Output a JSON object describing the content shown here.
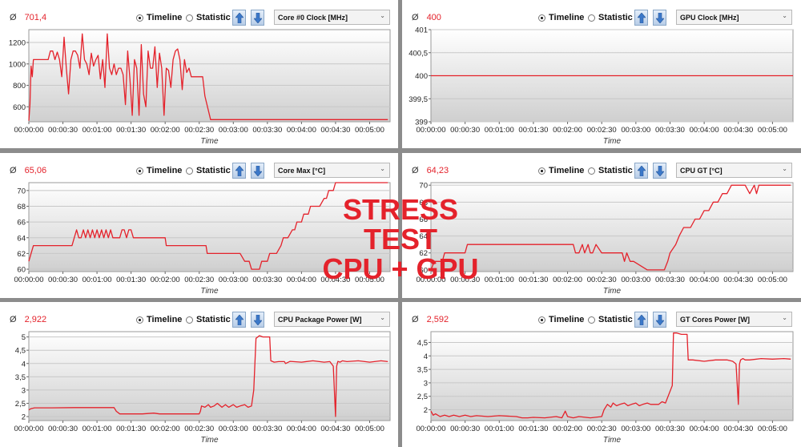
{
  "overlay": {
    "line1": "STRESS TEST",
    "line2": "CPU + GPU"
  },
  "controls": {
    "timeline": "Timeline",
    "statistic": "Statistic",
    "avg_symbol": "Ø",
    "chevron": "⌄"
  },
  "colors": {
    "line": "#e4222b",
    "avg_value": "#e4222b",
    "plot_bg_top": "#ffffff",
    "plot_bg_bottom": "#cfcfcf",
    "grid": "#c8c8c8"
  },
  "x_axis": {
    "label": "Time",
    "ticks": [
      "00:00:00",
      "00:00:30",
      "00:01:00",
      "00:01:30",
      "00:02:00",
      "00:02:30",
      "00:03:00",
      "00:03:30",
      "00:04:00",
      "00:04:30",
      "00:05:00"
    ],
    "tick_seconds": [
      0,
      30,
      60,
      90,
      120,
      150,
      180,
      210,
      240,
      270,
      300
    ],
    "range_seconds": [
      0,
      318
    ]
  },
  "panels": [
    {
      "avg": "701,4",
      "sensor": "Core #0 Clock [MHz]",
      "chart_data": {
        "type": "line",
        "xlabel": "Time",
        "ylim": [
          460,
          1320
        ],
        "y_ticks": [
          600,
          800,
          1000,
          1200
        ],
        "y_tick_labels": [
          "600",
          "800",
          "1000",
          "1200"
        ],
        "x": [
          0,
          1,
          2,
          3,
          4,
          5,
          7,
          9,
          11,
          13,
          15,
          17,
          19,
          21,
          23,
          25,
          27,
          29,
          31,
          33,
          35,
          37,
          39,
          41,
          43,
          45,
          47,
          49,
          51,
          53,
          55,
          57,
          59,
          61,
          63,
          65,
          67,
          69,
          71,
          73,
          75,
          77,
          79,
          81,
          83,
          85,
          87,
          89,
          91,
          93,
          95,
          97,
          99,
          101,
          103,
          105,
          107,
          109,
          111,
          113,
          115,
          117,
          119,
          121,
          123,
          125,
          127,
          129,
          131,
          133,
          135,
          137,
          139,
          141,
          143,
          145,
          147,
          149,
          151,
          153,
          155,
          160,
          180,
          210,
          240,
          270,
          300,
          316
        ],
        "y": [
          470,
          620,
          980,
          880,
          1040,
          1040,
          1040,
          1040,
          1040,
          1040,
          1040,
          1040,
          1120,
          1120,
          1040,
          1110,
          1040,
          880,
          1250,
          960,
          720,
          1040,
          1120,
          1120,
          1080,
          960,
          1280,
          1040,
          1000,
          900,
          1100,
          980,
          1040,
          1080,
          860,
          1040,
          780,
          1280,
          960,
          900,
          1000,
          900,
          960,
          960,
          900,
          620,
          1120,
          860,
          520,
          1040,
          960,
          520,
          1180,
          720,
          600,
          1120,
          960,
          960,
          1160,
          780,
          1100,
          960,
          520,
          960,
          940,
          780,
          1040,
          1120,
          1140,
          1040,
          760,
          1040,
          920,
          960,
          880,
          880,
          880,
          880,
          880,
          880,
          700,
          480,
          480,
          480,
          480,
          480,
          480,
          480
        ]
      }
    },
    {
      "avg": "400",
      "sensor": "GPU Clock [MHz]",
      "chart_data": {
        "type": "line",
        "xlabel": "Time",
        "ylim": [
          399,
          401
        ],
        "y_ticks": [
          399,
          399.5,
          400,
          400.5,
          401
        ],
        "y_tick_labels": [
          "399",
          "399,5",
          "400",
          "400,5",
          "401"
        ],
        "x": [
          0,
          318
        ],
        "y": [
          400,
          400
        ]
      }
    },
    {
      "avg": "65,06",
      "sensor": "Core Max [°C]",
      "chart_data": {
        "type": "line",
        "xlabel": "Time",
        "ylim": [
          59.7,
          71
        ],
        "y_ticks": [
          60,
          62,
          64,
          66,
          68,
          70
        ],
        "y_tick_labels": [
          "60",
          "62",
          "64",
          "66",
          "68",
          "70"
        ],
        "x": [
          0,
          2,
          4,
          8,
          12,
          38,
          40,
          42,
          44,
          46,
          48,
          50,
          52,
          54,
          56,
          58,
          60,
          62,
          64,
          66,
          68,
          70,
          72,
          74,
          76,
          78,
          80,
          82,
          84,
          86,
          88,
          90,
          92,
          95,
          100,
          110,
          120,
          121,
          130,
          150,
          156,
          157,
          170,
          185,
          186,
          190,
          192,
          194,
          196,
          198,
          200,
          202,
          203,
          205,
          210,
          212,
          215,
          218,
          222,
          224,
          226,
          228,
          232,
          234,
          236,
          240,
          242,
          246,
          248,
          250,
          252,
          256,
          260,
          262,
          264,
          268,
          270,
          272,
          280,
          300,
          316
        ],
        "y": [
          61,
          62,
          63,
          63,
          63,
          63,
          64,
          65,
          64,
          64,
          65,
          64,
          65,
          64,
          65,
          64,
          65,
          64,
          65,
          64,
          65,
          64,
          65,
          64,
          64,
          64,
          64,
          65,
          65,
          64,
          65,
          65,
          64,
          64,
          64,
          64,
          64,
          63,
          63,
          63,
          63,
          62,
          62,
          62,
          62,
          61,
          61,
          61,
          60,
          60,
          60,
          60,
          60,
          61,
          61,
          62,
          62,
          62,
          63,
          64,
          64,
          64,
          65,
          65,
          66,
          66,
          67,
          67,
          68,
          68,
          68,
          68,
          69,
          69,
          70,
          70,
          71,
          71,
          71,
          71,
          71
        ]
      }
    },
    {
      "avg": "64,23",
      "sensor": "CPU GT [°C]",
      "chart_data": {
        "type": "line",
        "xlabel": "Time",
        "ylim": [
          59.8,
          70.3
        ],
        "y_ticks": [
          60,
          62,
          64,
          66,
          68,
          70
        ],
        "y_tick_labels": [
          "60",
          "62",
          "64",
          "66",
          "68",
          "70"
        ],
        "x": [
          0,
          3,
          4,
          10,
          12,
          18,
          20,
          30,
          32,
          40,
          100,
          120,
          125,
          127,
          130,
          133,
          135,
          138,
          140,
          142,
          145,
          150,
          155,
          160,
          168,
          170,
          172,
          175,
          178,
          190,
          205,
          208,
          210,
          215,
          218,
          222,
          226,
          228,
          232,
          236,
          240,
          244,
          248,
          252,
          256,
          260,
          264,
          268,
          272,
          276,
          280,
          284,
          286,
          288,
          290,
          294,
          300,
          316
        ],
        "y": [
          60,
          61,
          61,
          61,
          62,
          62,
          62,
          62,
          63,
          63,
          63,
          63,
          63,
          62,
          62,
          63,
          62,
          63,
          62,
          62,
          63,
          62,
          62,
          62,
          62,
          61,
          62,
          61,
          61,
          60,
          60,
          61,
          62,
          63,
          64,
          65,
          65,
          65,
          66,
          66,
          67,
          67,
          68,
          68,
          69,
          69,
          70,
          70,
          70,
          70,
          69,
          70,
          69,
          70,
          70,
          70,
          70,
          70
        ]
      }
    },
    {
      "avg": "2,922",
      "sensor": "CPU Package Power [W]",
      "chart_data": {
        "type": "line",
        "xlabel": "Time",
        "ylim": [
          1.85,
          5.2
        ],
        "y_ticks": [
          2,
          2.5,
          3,
          3.5,
          4,
          4.5,
          5
        ],
        "y_tick_labels": [
          "2",
          "2,5",
          "3",
          "3,5",
          "4",
          "4,5",
          "5"
        ],
        "x": [
          0,
          2,
          5,
          20,
          40,
          60,
          75,
          77,
          80,
          90,
          100,
          110,
          115,
          120,
          130,
          140,
          150,
          151,
          152,
          155,
          158,
          160,
          163,
          166,
          170,
          173,
          176,
          180,
          183,
          186,
          190,
          193,
          196,
          198,
          200,
          203,
          206,
          212,
          213,
          216,
          220,
          225,
          226,
          230,
          240,
          250,
          260,
          265,
          268,
          270,
          271,
          272,
          274,
          276,
          280,
          290,
          300,
          310,
          316
        ],
        "y": [
          2.25,
          2.3,
          2.33,
          2.33,
          2.34,
          2.34,
          2.34,
          2.2,
          2.1,
          2.1,
          2.1,
          2.13,
          2.1,
          2.1,
          2.1,
          2.1,
          2.1,
          2.2,
          2.4,
          2.35,
          2.45,
          2.35,
          2.4,
          2.5,
          2.35,
          2.45,
          2.35,
          2.45,
          2.35,
          2.4,
          2.45,
          2.35,
          2.4,
          3.0,
          4.95,
          5.05,
          5.0,
          5.0,
          4.1,
          4.05,
          4.07,
          4.07,
          4.0,
          4.08,
          4.05,
          4.1,
          4.05,
          4.07,
          3.9,
          2.0,
          3.9,
          4.08,
          4.05,
          4.1,
          4.07,
          4.1,
          4.05,
          4.1,
          4.07
        ]
      }
    },
    {
      "avg": "2,592",
      "sensor": "GT Cores Power [W]",
      "chart_data": {
        "type": "line",
        "xlabel": "Time",
        "ylim": [
          1.6,
          4.9
        ],
        "y_ticks": [
          2,
          2.5,
          3,
          3.5,
          4,
          4.5
        ],
        "y_tick_labels": [
          "2",
          "2,5",
          "3",
          "3,5",
          "4",
          "4,5"
        ],
        "x": [
          0,
          2,
          4,
          8,
          12,
          16,
          20,
          25,
          30,
          35,
          40,
          50,
          60,
          75,
          80,
          85,
          90,
          100,
          110,
          115,
          118,
          120,
          125,
          130,
          140,
          150,
          152,
          155,
          158,
          160,
          163,
          166,
          170,
          173,
          176,
          180,
          183,
          186,
          190,
          193,
          196,
          200,
          203,
          206,
          212,
          213,
          216,
          220,
          225,
          226,
          230,
          240,
          250,
          260,
          265,
          268,
          270,
          271,
          272,
          274,
          276,
          280,
          290,
          300,
          310,
          316
        ],
        "y": [
          1.95,
          1.8,
          1.85,
          1.75,
          1.8,
          1.75,
          1.8,
          1.75,
          1.8,
          1.75,
          1.78,
          1.75,
          1.78,
          1.75,
          1.7,
          1.7,
          1.72,
          1.7,
          1.75,
          1.7,
          1.95,
          1.75,
          1.7,
          1.75,
          1.7,
          1.75,
          2.0,
          2.2,
          2.1,
          2.25,
          2.15,
          2.2,
          2.25,
          2.15,
          2.2,
          2.25,
          2.15,
          2.2,
          2.25,
          2.2,
          2.2,
          2.2,
          2.3,
          2.25,
          2.9,
          4.85,
          4.85,
          4.8,
          4.8,
          3.85,
          3.85,
          3.8,
          3.85,
          3.85,
          3.8,
          3.7,
          2.2,
          3.7,
          3.85,
          3.9,
          3.85,
          3.85,
          3.9,
          3.88,
          3.9,
          3.88
        ]
      }
    }
  ]
}
